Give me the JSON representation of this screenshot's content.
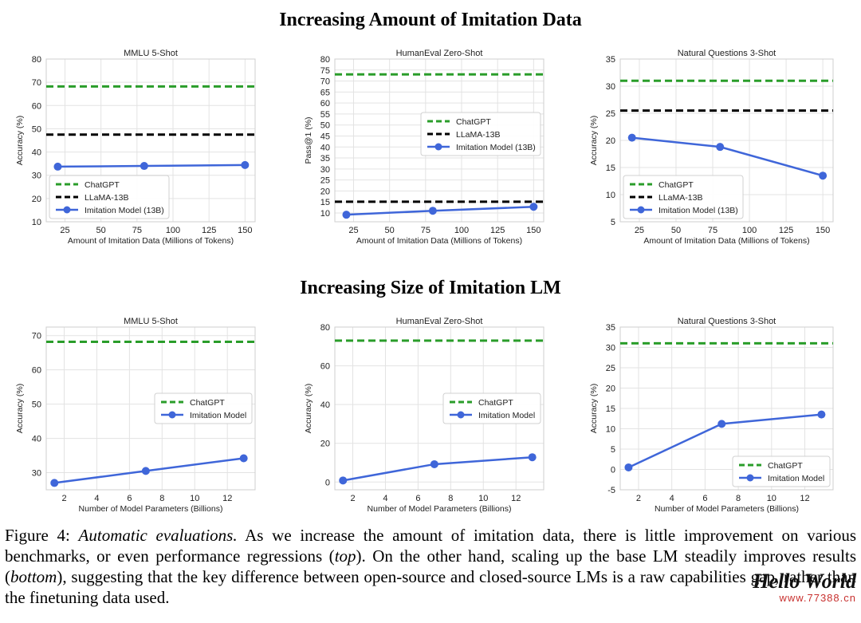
{
  "top_section_title": "Increasing Amount of Imitation Data",
  "bottom_section_title": "Increasing Size of Imitation LM",
  "caption": {
    "figure_label": "Figure 4:",
    "title": "Automatic evaluations.",
    "text_1": "As we increase the amount of imitation data, there is little improvement on various benchmarks, or even performance regressions (",
    "top_word": "top",
    "text_2": "). On the other hand, scaling up the base LM steadily improves results (",
    "bottom_word": "bottom",
    "text_3": "), suggesting that the key difference between open-source and closed-source LMs is a raw capabilities gap, rather than the finetuning data used."
  },
  "watermark": {
    "title": "Hello World",
    "url": "www.77388.cn"
  },
  "colors": {
    "chatgpt": "#2a9d2a",
    "llama": "#000000",
    "imitation": "#3f66d9",
    "grid": "#e3e3e3"
  },
  "chart_data": [
    {
      "type": "line",
      "title": "MMLU 5-Shot",
      "xlabel": "Amount of Imitation Data (Millions of Tokens)",
      "ylabel": "Accuracy (%)",
      "xlim": [
        12,
        157
      ],
      "ylim": [
        10,
        80
      ],
      "xticks": [
        25,
        50,
        75,
        100,
        125,
        150
      ],
      "yticks": [
        10,
        20,
        30,
        40,
        50,
        60,
        70,
        80
      ],
      "legend_position": "bottom-left",
      "series": [
        {
          "name": "ChatGPT",
          "kind": "hline",
          "value": 68.2,
          "color": "#2a9d2a"
        },
        {
          "name": "LLaMA-13B",
          "kind": "hline",
          "value": 47.5,
          "color": "#000000"
        },
        {
          "name": "Imitation Model (13B)",
          "kind": "line",
          "x": [
            20,
            80,
            150
          ],
          "y": [
            33.7,
            34.0,
            34.4
          ],
          "color": "#3f66d9"
        }
      ]
    },
    {
      "type": "line",
      "title": "HumanEval Zero-Shot",
      "xlabel": "Amount of Imitation Data (Millions of Tokens)",
      "ylabel": "Pass@1 (%)",
      "xlim": [
        12,
        157
      ],
      "ylim": [
        6,
        80
      ],
      "xticks": [
        25,
        50,
        75,
        100,
        125,
        150
      ],
      "yticks": [
        10,
        15,
        20,
        25,
        30,
        35,
        40,
        45,
        50,
        55,
        60,
        65,
        70,
        75,
        80
      ],
      "legend_position": "center-right",
      "series": [
        {
          "name": "ChatGPT",
          "kind": "hline",
          "value": 73.0,
          "color": "#2a9d2a"
        },
        {
          "name": "LLaMA-13B",
          "kind": "hline",
          "value": 15.1,
          "color": "#000000"
        },
        {
          "name": "Imitation Model (13B)",
          "kind": "line",
          "x": [
            20,
            80,
            150
          ],
          "y": [
            9.2,
            11.0,
            12.8
          ],
          "color": "#3f66d9"
        }
      ]
    },
    {
      "type": "line",
      "title": "Natural Questions 3-Shot",
      "xlabel": "Amount of Imitation Data (Millions of Tokens)",
      "ylabel": "Accuracy (%)",
      "xlim": [
        12,
        157
      ],
      "ylim": [
        5,
        35
      ],
      "xticks": [
        25,
        50,
        75,
        100,
        125,
        150
      ],
      "yticks": [
        5,
        10,
        15,
        20,
        25,
        30,
        35
      ],
      "legend_position": "bottom-left",
      "series": [
        {
          "name": "ChatGPT",
          "kind": "hline",
          "value": 31.0,
          "color": "#2a9d2a"
        },
        {
          "name": "LLaMA-13B",
          "kind": "hline",
          "value": 25.5,
          "color": "#000000"
        },
        {
          "name": "Imitation Model (13B)",
          "kind": "line",
          "x": [
            20,
            80,
            150
          ],
          "y": [
            20.5,
            18.8,
            13.5
          ],
          "color": "#3f66d9"
        }
      ]
    },
    {
      "type": "line",
      "title": "MMLU 5-Shot",
      "xlabel": "Number of Model Parameters (Billions)",
      "ylabel": "Accuracy (%)",
      "xlim": [
        0.9,
        13.7
      ],
      "ylim": [
        25,
        72.5
      ],
      "xticks": [
        2,
        4,
        6,
        8,
        10,
        12
      ],
      "yticks": [
        30,
        40,
        50,
        60,
        70
      ],
      "legend_position": "center-right",
      "series": [
        {
          "name": "ChatGPT",
          "kind": "hline",
          "value": 68.2,
          "color": "#2a9d2a"
        },
        {
          "name": "Imitation Model",
          "kind": "line",
          "x": [
            1.4,
            7,
            13
          ],
          "y": [
            27.0,
            30.5,
            34.2
          ],
          "color": "#3f66d9"
        }
      ]
    },
    {
      "type": "line",
      "title": "HumanEval Zero-Shot",
      "xlabel": "Number of Model Parameters (Billions)",
      "ylabel": "Accuracy (%)",
      "xlim": [
        0.9,
        13.7
      ],
      "ylim": [
        -4,
        80
      ],
      "xticks": [
        2,
        4,
        6,
        8,
        10,
        12
      ],
      "yticks": [
        0,
        20,
        40,
        60,
        80
      ],
      "legend_position": "center-right",
      "series": [
        {
          "name": "ChatGPT",
          "kind": "hline",
          "value": 73.0,
          "color": "#2a9d2a"
        },
        {
          "name": "Imitation Model",
          "kind": "line",
          "x": [
            1.4,
            7,
            13
          ],
          "y": [
            0.8,
            9.2,
            12.8
          ],
          "color": "#3f66d9"
        }
      ]
    },
    {
      "type": "line",
      "title": "Natural Questions 3-Shot",
      "xlabel": "Number of Model Parameters (Billions)",
      "ylabel": "Accuracy (%)",
      "xlim": [
        0.9,
        13.7
      ],
      "ylim": [
        -5,
        35
      ],
      "xticks": [
        2,
        4,
        6,
        8,
        10,
        12
      ],
      "yticks": [
        -5,
        0,
        5,
        10,
        15,
        20,
        25,
        30,
        35
      ],
      "legend_position": "bottom-right",
      "series": [
        {
          "name": "ChatGPT",
          "kind": "hline",
          "value": 31.0,
          "color": "#2a9d2a"
        },
        {
          "name": "Imitation Model",
          "kind": "line",
          "x": [
            1.4,
            7,
            13
          ],
          "y": [
            0.5,
            11.2,
            13.5
          ],
          "color": "#3f66d9"
        }
      ]
    }
  ]
}
